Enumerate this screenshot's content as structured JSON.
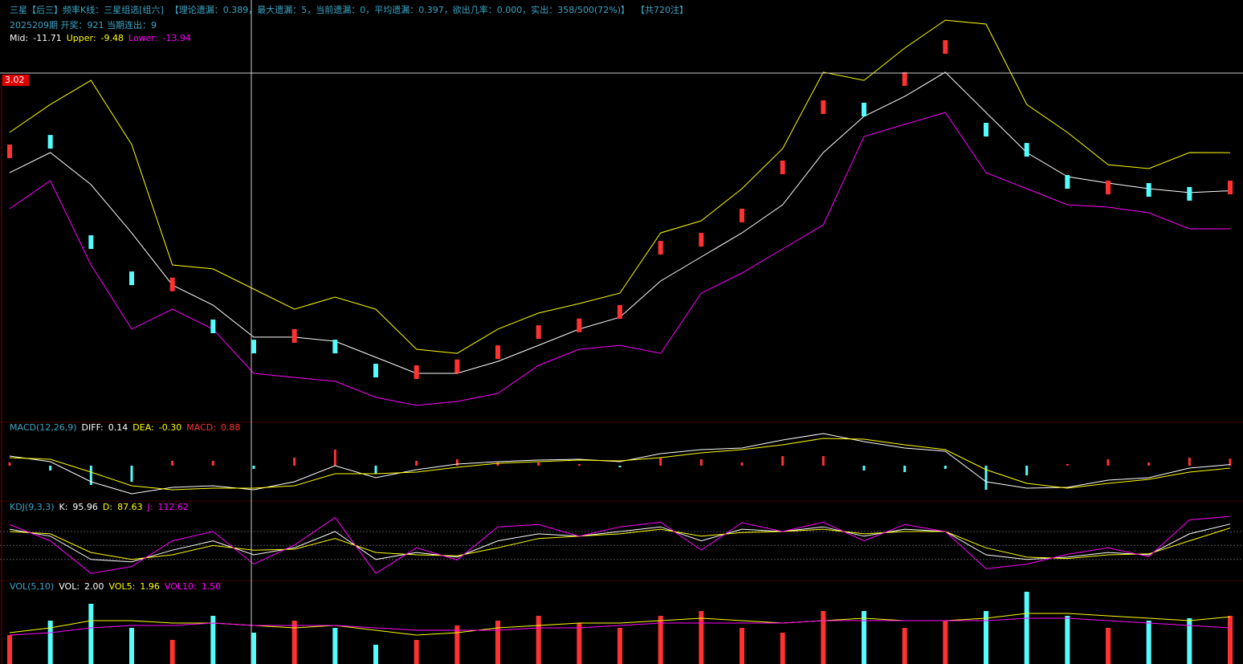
{
  "header": {
    "parts": [
      "三星【后三】频率K线：三星组选[组六]",
      "【理论遗漏：0.389，最大遗漏：5，当前遗漏：0，平均遗漏：0.397，欲出几率：0.000，实出：358/500(72%)】",
      "【共720注】"
    ],
    "issue": "2025209期 开奖：921 当期连出：9",
    "crosshair_label": "3.02"
  },
  "chart_data": [
    {
      "type": "candlestick",
      "ylim": [
        -25,
        -1
      ],
      "up_color": "#ff3232",
      "down_color": "#54fcfc",
      "open": [
        -9.8,
        -8.44,
        -14.32,
        -16.44,
        -17.6,
        -19.26,
        -20.44,
        -20.62,
        -20.44,
        -21.85,
        -22.74,
        -22.4,
        -21.57,
        -20.39,
        -20.0,
        -19.21,
        -15.45,
        -14.98,
        -13.56,
        -10.74,
        -7.21,
        -6.55,
        -5.56,
        -3.68,
        -7.73,
        -8.91,
        -10.79,
        -11.92,
        -11.26,
        -11.49,
        -11.92
      ],
      "close": [
        -9.0,
        -9.24,
        -15.12,
        -17.24,
        -16.8,
        -20.06,
        -21.24,
        -19.82,
        -21.24,
        -22.65,
        -21.94,
        -21.6,
        -20.77,
        -19.59,
        -19.2,
        -18.41,
        -14.65,
        -14.18,
        -12.76,
        -9.94,
        -6.41,
        -7.35,
        -4.76,
        -2.88,
        -8.53,
        -9.71,
        -11.59,
        -11.12,
        -12.06,
        -12.29,
        -11.12
      ],
      "series": [
        {
          "name": "Mid:",
          "color": "#ffffff",
          "values": [
            -10.65,
            -9.47,
            -11.35,
            -14.18,
            -17.24,
            -18.41,
            -20.29,
            -20.29,
            -20.53,
            -21.47,
            -22.41,
            -22.41,
            -21.71,
            -20.77,
            -19.82,
            -19.12,
            -17.0,
            -15.59,
            -14.18,
            -12.53,
            -9.47,
            -7.35,
            -6.18,
            -4.76,
            -7.12,
            -9.47,
            -10.88,
            -11.26,
            -11.59,
            -11.82,
            -11.71
          ]
        },
        {
          "name": "Upper:",
          "color": "#ffff00",
          "values": [
            -8.29,
            -6.65,
            -5.24,
            -9.0,
            -16.06,
            -16.29,
            -17.47,
            -18.65,
            -17.94,
            -18.65,
            -21.0,
            -21.24,
            -19.82,
            -18.88,
            -18.32,
            -17.71,
            -14.18,
            -13.47,
            -11.59,
            -9.24,
            -4.76,
            -5.24,
            -3.35,
            -1.71,
            -1.94,
            -6.65,
            -8.29,
            -10.18,
            -10.41,
            -9.47,
            -9.48
          ]
        },
        {
          "name": "Lower:",
          "color": "#ff00ff",
          "values": [
            -12.76,
            -11.12,
            -16.06,
            -19.82,
            -18.65,
            -19.82,
            -22.41,
            -22.65,
            -22.88,
            -23.82,
            -24.29,
            -24.06,
            -23.59,
            -21.94,
            -21.0,
            -20.77,
            -21.24,
            -17.71,
            -16.53,
            -15.12,
            -13.71,
            -8.53,
            -7.82,
            -7.12,
            -10.65,
            -11.59,
            -12.53,
            -12.67,
            -13.0,
            -13.94,
            -13.94
          ]
        }
      ]
    },
    {
      "type": "macd",
      "title": "MACD(12,26,9)",
      "ylim": [
        -4,
        4
      ],
      "bars": {
        "name": "MACD:",
        "name_color": "#ff3232",
        "up_color": "#ff3232",
        "down_color": "#54fcfc",
        "values": [
          0.4,
          -0.6,
          -2.4,
          -2.0,
          0.6,
          0.6,
          -0.4,
          1.0,
          2.0,
          -1.0,
          0.6,
          0.8,
          0.4,
          0.4,
          0.2,
          -0.2,
          1.0,
          0.8,
          0.4,
          1.2,
          1.2,
          -0.6,
          -0.8,
          -0.4,
          -3.0,
          -1.2,
          0.2,
          0.8,
          0.4,
          1.0,
          0.88
        ]
      },
      "series": [
        {
          "name": "DIFF:",
          "color": "#ffffff",
          "values": [
            1.2,
            0.5,
            -2.0,
            -3.5,
            -2.7,
            -2.5,
            -3.0,
            -2.0,
            0.0,
            -1.5,
            -0.5,
            0.2,
            0.5,
            0.7,
            0.8,
            0.5,
            1.5,
            2.0,
            2.2,
            3.2,
            4.0,
            3.0,
            2.2,
            1.8,
            -2.0,
            -2.8,
            -2.7,
            -1.8,
            -1.5,
            -0.3,
            0.14
          ]
        },
        {
          "name": "DEA:",
          "color": "#ffff00",
          "values": [
            1.0,
            0.8,
            -0.8,
            -2.5,
            -3.0,
            -2.8,
            -2.8,
            -2.5,
            -1.0,
            -1.0,
            -0.8,
            -0.2,
            0.3,
            0.5,
            0.7,
            0.6,
            1.0,
            1.6,
            2.0,
            2.6,
            3.4,
            3.3,
            2.6,
            2.0,
            -0.5,
            -2.2,
            -2.8,
            -2.2,
            -1.7,
            -0.8,
            -0.3
          ],
          "value_labels": [
            null,
            null,
            null,
            null,
            null,
            null,
            null,
            null,
            null,
            null,
            null,
            null,
            null,
            null,
            null,
            null,
            null,
            null,
            null,
            null,
            null,
            null,
            null,
            null,
            null,
            null,
            null,
            null,
            null,
            null,
            "-0.30"
          ]
        }
      ]
    },
    {
      "type": "kdj",
      "title": "KDJ(9,3,3)",
      "ylim": [
        -20,
        130
      ],
      "hlines": [
        20,
        50,
        80
      ],
      "series": [
        {
          "name": "K:",
          "color": "#ffffff",
          "values": [
            85,
            70,
            20,
            15,
            40,
            60,
            30,
            45,
            80,
            20,
            35,
            25,
            60,
            75,
            70,
            80,
            90,
            60,
            85,
            80,
            90,
            70,
            85,
            80,
            30,
            20,
            25,
            35,
            30,
            75,
            95.96
          ]
        },
        {
          "name": "D:",
          "color": "#ffff00",
          "values": [
            80,
            75,
            35,
            20,
            30,
            50,
            40,
            42,
            65,
            35,
            30,
            28,
            45,
            65,
            70,
            75,
            85,
            70,
            78,
            80,
            85,
            75,
            80,
            80,
            45,
            25,
            22,
            30,
            32,
            60,
            87.63
          ]
        },
        {
          "name": "J:",
          "color": "#ff00ff",
          "values": [
            95,
            60,
            -10,
            5,
            60,
            80,
            10,
            51,
            110,
            -10,
            45,
            19,
            90,
            95,
            70,
            90,
            100,
            40,
            99,
            80,
            100,
            60,
            95,
            80,
            0,
            10,
            31,
            45,
            26,
            105,
            112.62
          ]
        }
      ]
    },
    {
      "type": "vol",
      "title": "VOL(5,10)",
      "ylim": [
        0,
        3
      ],
      "bars": {
        "name": "VOL:",
        "name_color": "#ffffff",
        "up_color": "#ff3232",
        "down_color": "#54fcfc",
        "values": [
          1.2,
          1.8,
          2.5,
          1.5,
          1.0,
          2.0,
          1.3,
          1.8,
          1.5,
          0.8,
          1.0,
          1.6,
          1.8,
          2.0,
          1.7,
          1.5,
          2.0,
          2.2,
          1.5,
          1.3,
          2.2,
          2.2,
          1.5,
          1.8,
          2.2,
          3.0,
          2.0,
          1.5,
          1.8,
          1.9,
          2
        ],
        "value_labels": [
          null,
          null,
          null,
          null,
          null,
          null,
          null,
          null,
          null,
          null,
          null,
          null,
          null,
          null,
          null,
          null,
          null,
          null,
          null,
          null,
          null,
          null,
          null,
          null,
          null,
          null,
          null,
          null,
          null,
          null,
          "2.00"
        ]
      },
      "series": [
        {
          "name": "VOL5:",
          "color": "#ffff00",
          "values": [
            1.3,
            1.5,
            1.8,
            1.8,
            1.7,
            1.7,
            1.6,
            1.5,
            1.6,
            1.4,
            1.2,
            1.3,
            1.5,
            1.6,
            1.7,
            1.7,
            1.8,
            1.9,
            1.8,
            1.7,
            1.8,
            1.9,
            1.8,
            1.8,
            1.9,
            2.1,
            2.1,
            2.0,
            1.9,
            1.8,
            1.96
          ]
        },
        {
          "name": "VOL10:",
          "color": "#ff00ff",
          "values": [
            1.2,
            1.3,
            1.5,
            1.6,
            1.6,
            1.7,
            1.6,
            1.6,
            1.6,
            1.5,
            1.4,
            1.4,
            1.4,
            1.5,
            1.5,
            1.6,
            1.7,
            1.7,
            1.7,
            1.7,
            1.8,
            1.8,
            1.8,
            1.8,
            1.8,
            1.9,
            1.9,
            1.8,
            1.7,
            1.6,
            1.5
          ],
          "value_labels": [
            null,
            null,
            null,
            null,
            null,
            null,
            null,
            null,
            null,
            null,
            null,
            null,
            null,
            null,
            null,
            null,
            null,
            null,
            null,
            null,
            null,
            null,
            null,
            null,
            null,
            null,
            null,
            null,
            null,
            null,
            "1.50"
          ]
        }
      ]
    }
  ]
}
